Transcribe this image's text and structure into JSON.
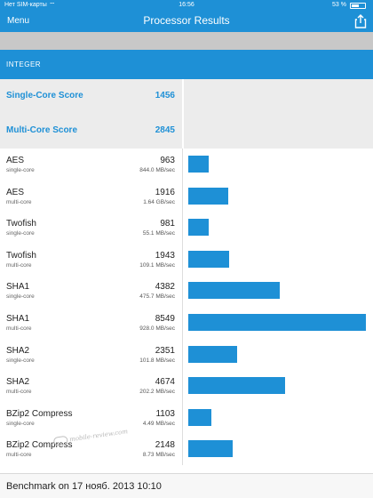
{
  "status_bar": {
    "carrier": "Нет SIM-карты",
    "time": "16:56",
    "battery": "53 %"
  },
  "nav": {
    "menu_label": "Menu",
    "title": "Processor Results"
  },
  "section": {
    "header": "INTEGER"
  },
  "scores": [
    {
      "label": "Single-Core Score",
      "value": "1456"
    },
    {
      "label": "Multi-Core Score",
      "value": "2845"
    }
  ],
  "results": [
    {
      "name": "AES",
      "mode": "single-core",
      "score": "963",
      "rate": "844.0 MB/sec"
    },
    {
      "name": "AES",
      "mode": "multi-core",
      "score": "1916",
      "rate": "1.64 GB/sec"
    },
    {
      "name": "Twofish",
      "mode": "single-core",
      "score": "981",
      "rate": "55.1 MB/sec"
    },
    {
      "name": "Twofish",
      "mode": "multi-core",
      "score": "1943",
      "rate": "109.1 MB/sec"
    },
    {
      "name": "SHA1",
      "mode": "single-core",
      "score": "4382",
      "rate": "475.7 MB/sec"
    },
    {
      "name": "SHA1",
      "mode": "multi-core",
      "score": "8549",
      "rate": "928.0 MB/sec"
    },
    {
      "name": "SHA2",
      "mode": "single-core",
      "score": "2351",
      "rate": "101.8 MB/sec"
    },
    {
      "name": "SHA2",
      "mode": "multi-core",
      "score": "4674",
      "rate": "202.2 MB/sec"
    },
    {
      "name": "BZip2 Compress",
      "mode": "single-core",
      "score": "1103",
      "rate": "4.49 MB/sec"
    },
    {
      "name": "BZip2 Compress",
      "mode": "multi-core",
      "score": "2148",
      "rate": "8.73 MB/sec"
    }
  ],
  "watermark": "mobile-review.com",
  "footer": "Benchmark on 17 нояб. 2013 10:10",
  "colors": {
    "accent": "#1e90d6",
    "score_bg": "#ececec",
    "band": "#c8c8c8"
  },
  "icons": {
    "share": "share-icon",
    "wifi": "wifi-icon",
    "battery": "battery-icon"
  }
}
